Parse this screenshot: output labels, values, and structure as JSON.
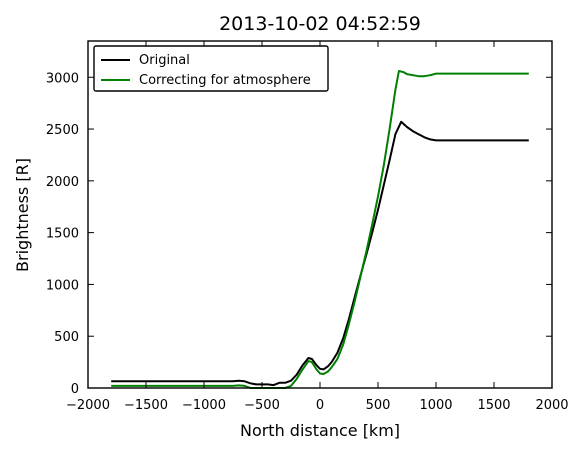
{
  "chart_data": {
    "type": "line",
    "title": "2013-10-02 04:52:59",
    "xlabel": "North distance [km]",
    "ylabel": "Brightness [R]",
    "xlim": [
      -2000,
      2000
    ],
    "ylim": [
      0,
      3350
    ],
    "xticks": [
      -2000,
      -1500,
      -1000,
      -500,
      0,
      500,
      1000,
      1500,
      2000
    ],
    "xtick_labels": [
      "−2000",
      "−1500",
      "−1000",
      "−500",
      "0",
      "500",
      "1000",
      "1500",
      "2000"
    ],
    "yticks": [
      0,
      500,
      1000,
      1500,
      2000,
      2500,
      3000
    ],
    "ytick_labels": [
      "0",
      "500",
      "1000",
      "1500",
      "2000",
      "2500",
      "3000"
    ],
    "legend_position": "top-left",
    "grid": false,
    "series": [
      {
        "name": "Original",
        "color": "#000000",
        "x": [
          -1800,
          -1500,
          -1200,
          -900,
          -750,
          -700,
          -650,
          -600,
          -550,
          -500,
          -450,
          -400,
          -350,
          -300,
          -250,
          -200,
          -150,
          -100,
          -70,
          -30,
          0,
          30,
          70,
          100,
          150,
          200,
          250,
          300,
          350,
          400,
          450,
          500,
          550,
          600,
          650,
          700,
          720,
          750,
          800,
          850,
          900,
          950,
          1000,
          1200,
          1400,
          1600,
          1800
        ],
        "y": [
          65,
          65,
          65,
          65,
          65,
          70,
          65,
          45,
          35,
          35,
          35,
          28,
          50,
          50,
          70,
          130,
          220,
          290,
          280,
          220,
          185,
          180,
          210,
          250,
          340,
          480,
          670,
          880,
          1090,
          1290,
          1500,
          1720,
          1960,
          2200,
          2450,
          2570,
          2550,
          2520,
          2480,
          2450,
          2420,
          2400,
          2390,
          2390,
          2390,
          2390,
          2390
        ]
      },
      {
        "name": "Correcting for atmosphere",
        "color": "#008000",
        "x": [
          -1800,
          -1500,
          -1200,
          -900,
          -750,
          -700,
          -650,
          -600,
          -550,
          -500,
          -450,
          -400,
          -350,
          -300,
          -250,
          -200,
          -150,
          -100,
          -70,
          -30,
          0,
          30,
          70,
          100,
          150,
          200,
          250,
          300,
          350,
          400,
          450,
          500,
          550,
          600,
          650,
          680,
          720,
          750,
          800,
          850,
          900,
          950,
          1000,
          1200,
          1400,
          1600,
          1800
        ],
        "y": [
          20,
          20,
          20,
          20,
          20,
          25,
          20,
          0,
          0,
          0,
          0,
          0,
          0,
          0,
          20,
          90,
          180,
          260,
          250,
          180,
          140,
          135,
          160,
          200,
          280,
          420,
          620,
          840,
          1080,
          1320,
          1580,
          1850,
          2150,
          2500,
          2880,
          3060,
          3050,
          3030,
          3020,
          3010,
          3010,
          3020,
          3035,
          3035,
          3035,
          3035,
          3035
        ]
      }
    ]
  }
}
